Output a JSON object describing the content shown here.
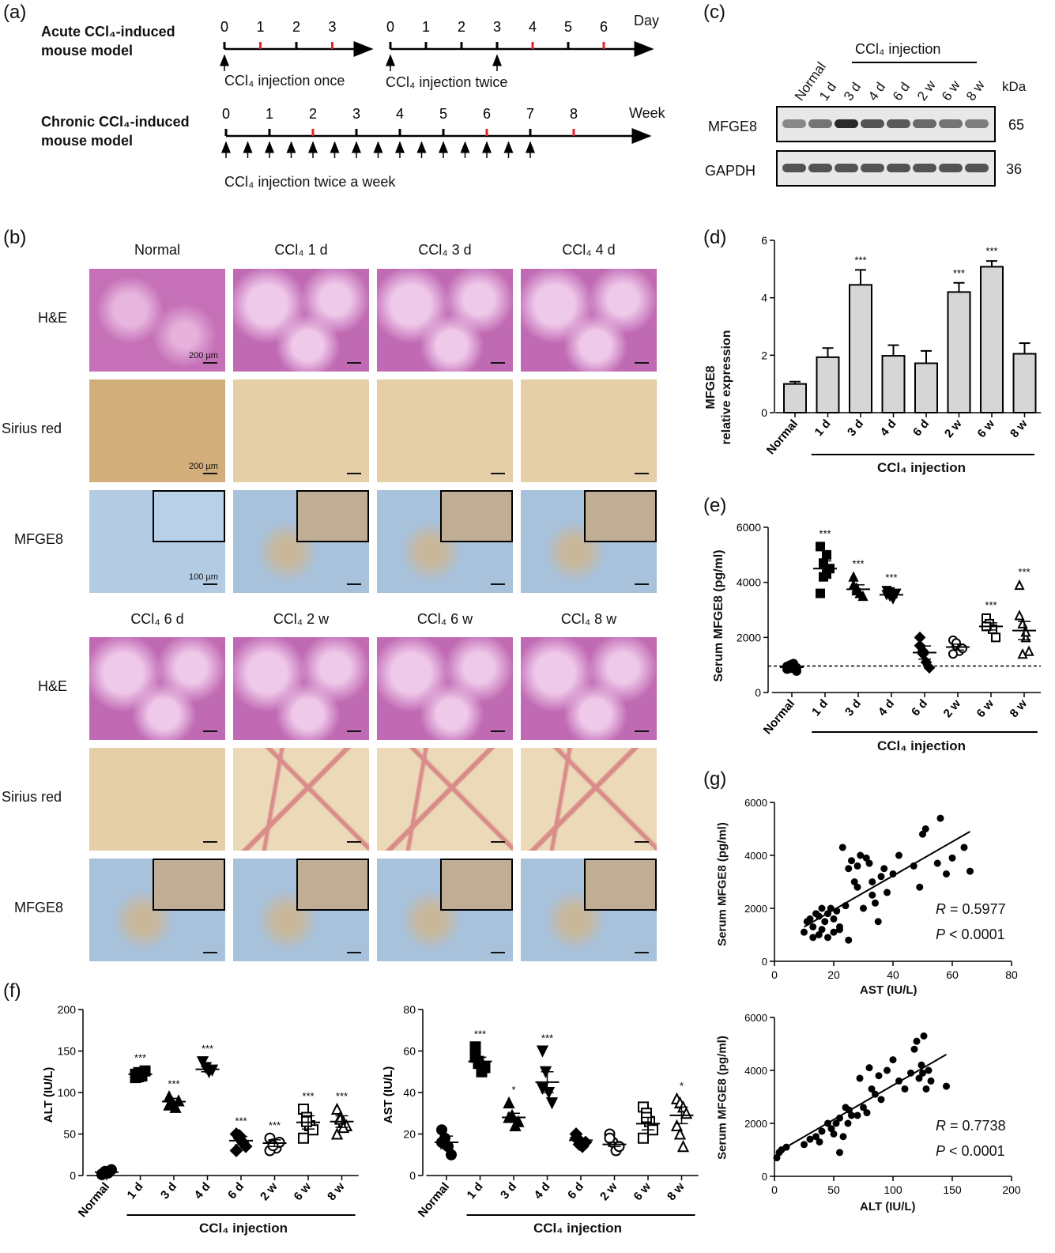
{
  "panel_a": {
    "label": "(a)",
    "acute_title": [
      "Acute CCl₄-induced",
      "mouse model"
    ],
    "chronic_title": [
      "Chronic CCl₄-induced",
      "mouse model"
    ],
    "timeline1_ticks": [
      "0",
      "1",
      "2",
      "3"
    ],
    "timeline2_ticks": [
      "0",
      "1",
      "2",
      "3",
      "4",
      "5",
      "6"
    ],
    "timeline2_unit": "Day",
    "timeline3_ticks": [
      "0",
      "1",
      "2",
      "3",
      "4",
      "5",
      "6",
      "7",
      "8"
    ],
    "timeline3_unit": "Week",
    "note1": "CCl₄ injection once",
    "note2": "CCl₄ injection twice",
    "note3": "CCl₄ injection twice a week",
    "sacrifice_marker_color": "#e8202a"
  },
  "panel_b": {
    "label": "(b)",
    "top_columns": [
      "Normal",
      "CCl₄ 1 d",
      "CCl₄ 3 d",
      "CCl₄ 4 d"
    ],
    "bottom_columns": [
      "CCl₄ 6 d",
      "CCl₄ 2 w",
      "CCl₄ 6 w",
      "CCl₄ 8 w"
    ],
    "rows": [
      "H&E",
      "Sirius red",
      "MFGE8"
    ],
    "scale_he": "200 µm",
    "scale_sr": "200 µm",
    "scale_ihc": "100 µm"
  },
  "panel_c": {
    "label": "(c)",
    "group_label": "CCl₄ injection",
    "lanes": [
      "Normal",
      "1 d",
      "3 d",
      "4 d",
      "6 d",
      "2 w",
      "6 w",
      "8 w"
    ],
    "kda_label": "kDa",
    "proteins": [
      {
        "name": "MFGE8",
        "kda": "65"
      },
      {
        "name": "GAPDH",
        "kda": "36"
      }
    ]
  },
  "panel_d": {
    "label": "(d)",
    "ylabel_line1": "MFGE8",
    "ylabel_line2": "relative expression",
    "group_label": "CCl₄ injection"
  },
  "panel_e": {
    "label": "(e)",
    "ylabel": "Serum MFGE8 (pg/ml)",
    "group_label": "CCl₄ injection"
  },
  "panel_f": {
    "label": "(f)",
    "group_label": "CCl₄ injection"
  },
  "panel_g": {
    "label": "(g)",
    "plot1": {
      "xlabel": "AST (IU/L)",
      "ylabel": "Serum MFGE8 (pg/ml)",
      "R_label": "R",
      "R": "= 0.5977",
      "P_label": "P",
      "P": "< 0.0001"
    },
    "plot2": {
      "xlabel": "ALT (IU/L)",
      "ylabel": "Serum MFGE8 (pg/ml)",
      "R_label": "R",
      "R": "= 0.7738",
      "P_label": "P",
      "P": "< 0.0001"
    }
  },
  "chart_data": [
    {
      "id": "d",
      "type": "bar",
      "categories": [
        "Normal",
        "1 d",
        "3 d",
        "4 d",
        "6 d",
        "2 w",
        "6 w",
        "8 w"
      ],
      "values": [
        1.0,
        1.93,
        4.45,
        1.98,
        1.72,
        4.2,
        5.08,
        2.05
      ],
      "errors": [
        0.08,
        0.32,
        0.52,
        0.37,
        0.43,
        0.32,
        0.2,
        0.37
      ],
      "annotations": [
        "",
        "",
        "***",
        "",
        "",
        "***",
        "***",
        ""
      ],
      "ylabel": "MFGE8 relative expression",
      "ylim": [
        0,
        6
      ],
      "yticks": [
        0,
        2,
        4,
        6
      ],
      "bar_color": "#d6d6d6"
    },
    {
      "id": "e",
      "type": "scatter",
      "categories": [
        "Normal",
        "1 d",
        "3 d",
        "4 d",
        "6 d",
        "2 w",
        "6 w",
        "8 w"
      ],
      "markers": [
        "circle",
        "square",
        "triangle",
        "triangle-down",
        "diamond",
        "circle-open",
        "square-open",
        "triangle-open"
      ],
      "points": [
        [
          850,
          1000,
          920,
          780,
          950,
          880,
          1050,
          900
        ],
        [
          5300,
          4700,
          4300,
          4500,
          3600,
          4200,
          5000
        ],
        [
          4200,
          3800,
          3600,
          3500,
          3900,
          3700
        ],
        [
          3700,
          3500,
          3400,
          3600,
          3550,
          3650
        ],
        [
          2000,
          1500,
          1100,
          900,
          1700,
          1400
        ],
        [
          1900,
          1700,
          1500,
          1600,
          1400,
          1800
        ],
        [
          2700,
          2500,
          2300,
          2000,
          2400
        ],
        [
          3900,
          2500,
          2000,
          1500,
          2800,
          1400,
          2200
        ]
      ],
      "means": [
        920,
        4500,
        3750,
        3550,
        1450,
        1650,
        2400,
        2250
      ],
      "sems": [
        50,
        280,
        160,
        100,
        240,
        110,
        130,
        330
      ],
      "annotations": [
        "",
        "***",
        "***",
        "***",
        "",
        "",
        "***",
        "***"
      ],
      "baseline": 960,
      "ylabel": "Serum MFGE8 (pg/ml)",
      "ylim": [
        0,
        6000
      ],
      "yticks": [
        0,
        2000,
        4000,
        6000
      ]
    },
    {
      "id": "f_alt",
      "type": "scatter",
      "categories": [
        "Normal",
        "1 d",
        "3 d",
        "4 d",
        "6 d",
        "2 w",
        "6 w",
        "8 w"
      ],
      "markers": [
        "circle",
        "square",
        "triangle",
        "triangle-down",
        "diamond",
        "circle-open",
        "square-open",
        "triangle-open"
      ],
      "points": [
        [
          2,
          5,
          3,
          7,
          1,
          4
        ],
        [
          118,
          124,
          120,
          126,
          122,
          119
        ],
        [
          95,
          88,
          82,
          90,
          85
        ],
        [
          137,
          130,
          125,
          127
        ],
        [
          50,
          45,
          40,
          35,
          30,
          48
        ],
        [
          45,
          38,
          33,
          40,
          30,
          36
        ],
        [
          80,
          70,
          60,
          55,
          45,
          65
        ],
        [
          80,
          70,
          65,
          60,
          50,
          68,
          58
        ]
      ],
      "means": [
        4,
        122,
        89,
        128,
        42,
        39,
        64,
        65
      ],
      "sems": [
        1,
        2,
        4,
        3,
        5,
        4,
        8,
        7
      ],
      "annotations": [
        "",
        "***",
        "***",
        "***",
        "***",
        "***",
        "***",
        "***"
      ],
      "ylabel": "ALT (IU/L)",
      "ylim": [
        0,
        200
      ],
      "yticks": [
        0,
        50,
        100,
        150,
        200
      ]
    },
    {
      "id": "f_ast",
      "type": "scatter",
      "categories": [
        "Normal",
        "1 d",
        "3 d",
        "4 d",
        "6 d",
        "2 w",
        "6 w",
        "8 w"
      ],
      "markers": [
        "circle",
        "square",
        "triangle",
        "triangle-down",
        "diamond",
        "circle-open",
        "square-open",
        "triangle-open"
      ],
      "points": [
        [
          22,
          18,
          14,
          10,
          16
        ],
        [
          62,
          55,
          50,
          52,
          57,
          54
        ],
        [
          35,
          29,
          24,
          26,
          28
        ],
        [
          60,
          50,
          40,
          35,
          42
        ],
        [
          20,
          17,
          14,
          16,
          18,
          15
        ],
        [
          20,
          16,
          12,
          14,
          18
        ],
        [
          33,
          30,
          26,
          22,
          18,
          28
        ],
        [
          37,
          35,
          33,
          30,
          24,
          20,
          14
        ]
      ],
      "means": [
        16,
        55,
        28,
        45,
        17,
        15,
        25,
        29
      ],
      "sems": [
        3,
        2,
        2,
        5,
        1,
        1,
        3,
        4
      ],
      "annotations": [
        "",
        "***",
        "*",
        "***",
        "",
        "",
        "",
        "*"
      ],
      "ylabel": "AST (IU/L)",
      "ylim": [
        0,
        80
      ],
      "yticks": [
        0,
        20,
        40,
        60,
        80
      ]
    },
    {
      "id": "g_ast",
      "type": "scatter",
      "xlabel": "AST (IU/L)",
      "ylabel": "Serum MFGE8 (pg/ml)",
      "xlim": [
        0,
        80
      ],
      "ylim": [
        0,
        6000
      ],
      "xticks": [
        0,
        20,
        40,
        60,
        80
      ],
      "yticks": [
        0,
        2000,
        4000,
        6000
      ],
      "x": [
        10,
        11,
        12,
        13,
        13,
        14,
        15,
        15,
        16,
        16,
        17,
        18,
        18,
        19,
        20,
        20,
        21,
        22,
        22,
        23,
        24,
        25,
        25,
        26,
        27,
        28,
        28,
        29,
        30,
        31,
        32,
        33,
        33,
        34,
        35,
        36,
        37,
        38,
        40,
        42,
        47,
        49,
        50,
        51,
        55,
        56,
        58,
        60,
        64,
        66
      ],
      "y": [
        1100,
        1500,
        1600,
        900,
        1300,
        1800,
        1000,
        1700,
        1200,
        2000,
        1500,
        900,
        1800,
        2000,
        1100,
        1600,
        1900,
        1200,
        1300,
        4300,
        2100,
        800,
        3500,
        3800,
        3000,
        2800,
        3600,
        4000,
        2000,
        3900,
        3700,
        2500,
        3000,
        2200,
        1500,
        3200,
        3500,
        2600,
        3300,
        4000,
        3600,
        2800,
        4800,
        5000,
        3700,
        5400,
        3300,
        3900,
        4300,
        3400
      ],
      "fit": [
        [
          10,
          1300
        ],
        [
          66,
          4900
        ]
      ],
      "R": 0.5977,
      "P": "< 0.0001"
    },
    {
      "id": "g_alt",
      "type": "scatter",
      "xlabel": "ALT (IU/L)",
      "ylabel": "Serum MFGE8 (pg/ml)",
      "xlim": [
        0,
        200
      ],
      "ylim": [
        0,
        6000
      ],
      "xticks": [
        0,
        50,
        100,
        150,
        200
      ],
      "yticks": [
        0,
        2000,
        4000,
        6000
      ],
      "x": [
        2,
        4,
        6,
        10,
        25,
        30,
        35,
        38,
        40,
        45,
        48,
        50,
        52,
        55,
        55,
        58,
        60,
        62,
        63,
        65,
        70,
        72,
        75,
        78,
        80,
        82,
        85,
        88,
        90,
        95,
        100,
        105,
        110,
        115,
        118,
        120,
        122,
        124,
        125,
        126,
        128,
        130,
        132,
        145
      ],
      "y": [
        700,
        900,
        1000,
        1100,
        1200,
        1400,
        1500,
        1300,
        1700,
        2000,
        1800,
        1600,
        2000,
        2200,
        900,
        1500,
        2600,
        2000,
        2500,
        2300,
        2300,
        3700,
        2600,
        2400,
        4100,
        3300,
        3100,
        3800,
        2900,
        4000,
        4400,
        3600,
        3300,
        3900,
        4800,
        5100,
        3700,
        4200,
        3900,
        5300,
        3300,
        4000,
        3600,
        3400
      ],
      "fit": [
        [
          2,
          900
        ],
        [
          145,
          4600
        ]
      ],
      "R": 0.7738,
      "P": "< 0.0001"
    }
  ]
}
